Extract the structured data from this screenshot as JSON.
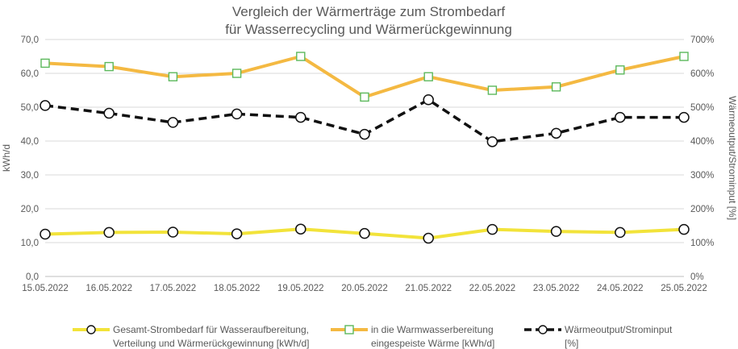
{
  "chart_data": {
    "type": "line",
    "title": [
      "Vergleich der Wärmerträge zum Strombedarf",
      "für Wasserrecycling und Wärmerückgewinnung"
    ],
    "ylabel": "kWh/d",
    "y2label": "Wärmeoutput/Strominput [%]",
    "ylim": [
      0,
      70
    ],
    "y2lim": [
      0,
      700
    ],
    "yticks": [
      "0,0",
      "10,0",
      "20,0",
      "30,0",
      "40,0",
      "50,0",
      "60,0",
      "70,0"
    ],
    "y2ticks": [
      "0%",
      "100%",
      "200%",
      "300%",
      "400%",
      "500%",
      "600%",
      "700%"
    ],
    "grid": true,
    "legend_position": "bottom",
    "x": [
      "15.05.2022",
      "16.05.2022",
      "17.05.2022",
      "18.05.2022",
      "19.05.2022",
      "20.05.2022",
      "21.05.2022",
      "22.05.2022",
      "23.05.2022",
      "24.05.2022",
      "25.05.2022"
    ],
    "series": [
      {
        "name": [
          "Gesamt-Strombedarf für Wasseraufbereitung,",
          "Verteilung und Wärmerückgewinnung [kWh/d]"
        ],
        "axis": "left",
        "color": "#f2e33a",
        "marker": "circle",
        "line": "solid",
        "values": [
          12.5,
          13.0,
          13.1,
          12.6,
          14.0,
          12.7,
          11.3,
          13.9,
          13.3,
          13.0,
          13.9
        ]
      },
      {
        "name": [
          "in die Warmwasserbereitung",
          "eingespeiste Wärme [kWh/d]"
        ],
        "axis": "left",
        "color": "#f4b942",
        "marker": "square",
        "line": "solid",
        "values": [
          63.0,
          62.0,
          59.0,
          60.0,
          65.0,
          53.0,
          59.0,
          55.0,
          56.0,
          61.0,
          65.0
        ]
      },
      {
        "name": [
          "Wärmeoutput/Strominput",
          "[%]"
        ],
        "axis": "right",
        "color": "#111111",
        "marker": "circle",
        "line": "dashed",
        "values": [
          505,
          482,
          455,
          480,
          470,
          420,
          522,
          398,
          423,
          470,
          470
        ]
      }
    ]
  }
}
